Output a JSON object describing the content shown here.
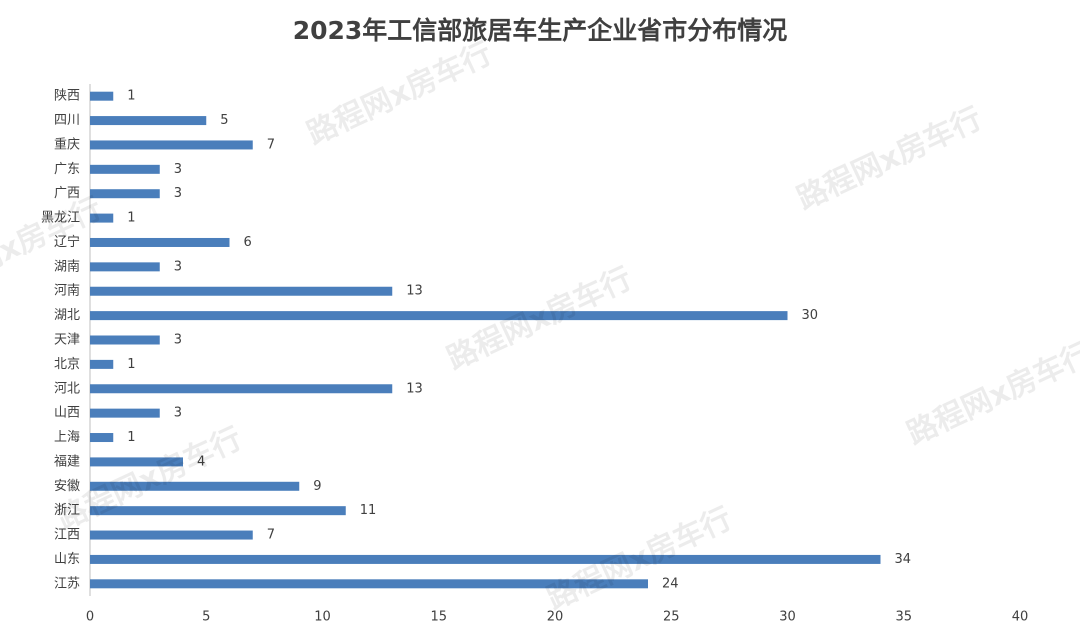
{
  "chart_data": {
    "type": "barh",
    "title": "2023年工信部旅居车生产企业省市分布情况",
    "categories": [
      "陕西",
      "四川",
      "重庆",
      "广东",
      "广西",
      "黑龙江",
      "辽宁",
      "湖南",
      "河南",
      "湖北",
      "天津",
      "北京",
      "河北",
      "山西",
      "上海",
      "福建",
      "安徽",
      "浙江",
      "江西",
      "山东",
      "江苏"
    ],
    "values": [
      1,
      5,
      7,
      3,
      3,
      1,
      6,
      3,
      13,
      30,
      3,
      1,
      13,
      3,
      1,
      4,
      9,
      11,
      7,
      34,
      24
    ],
    "color": "#4a7ebb",
    "xlim": [
      0,
      40
    ],
    "xticks": [
      0,
      5,
      10,
      15,
      20,
      25,
      30,
      35,
      40
    ],
    "grid": false,
    "watermark": "路程网x房车行"
  }
}
